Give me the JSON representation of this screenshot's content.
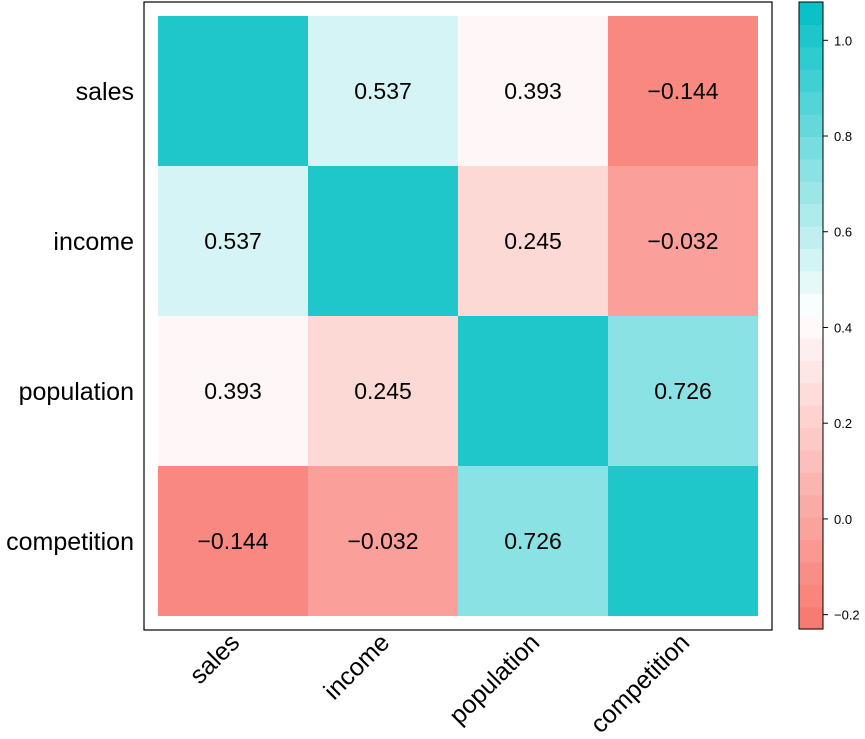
{
  "chart_data": {
    "type": "heatmap",
    "title": "",
    "xlabel": "",
    "ylabel": "",
    "x_categories": [
      "sales",
      "income",
      "population",
      "competition"
    ],
    "y_categories": [
      "sales",
      "income",
      "population",
      "competition"
    ],
    "values": [
      [
        1.0,
        0.537,
        0.393,
        -0.144
      ],
      [
        0.537,
        1.0,
        0.245,
        -0.032
      ],
      [
        0.393,
        0.245,
        1.0,
        0.726
      ],
      [
        -0.144,
        -0.032,
        0.726,
        1.0
      ]
    ],
    "cell_labels": [
      [
        "",
        "0.537",
        "0.393",
        "−0.144"
      ],
      [
        "0.537",
        "",
        "0.245",
        "−0.032"
      ],
      [
        "0.393",
        "0.245",
        "",
        "0.726"
      ],
      [
        "−0.144",
        "−0.032",
        "0.726",
        ""
      ]
    ],
    "colorbar": {
      "range": [
        -0.23,
        1.08
      ],
      "ticks": [
        -0.2,
        0.0,
        0.2,
        0.4,
        0.6,
        0.8,
        1.0
      ],
      "tick_labels": [
        "−0.2",
        "0.0",
        "0.2",
        "0.4",
        "0.6",
        "0.8",
        "1.0"
      ],
      "color_low": "#f8766d",
      "color_mid": "#ffffff",
      "color_high": "#00bfc4",
      "mid_value": 0.43
    }
  }
}
